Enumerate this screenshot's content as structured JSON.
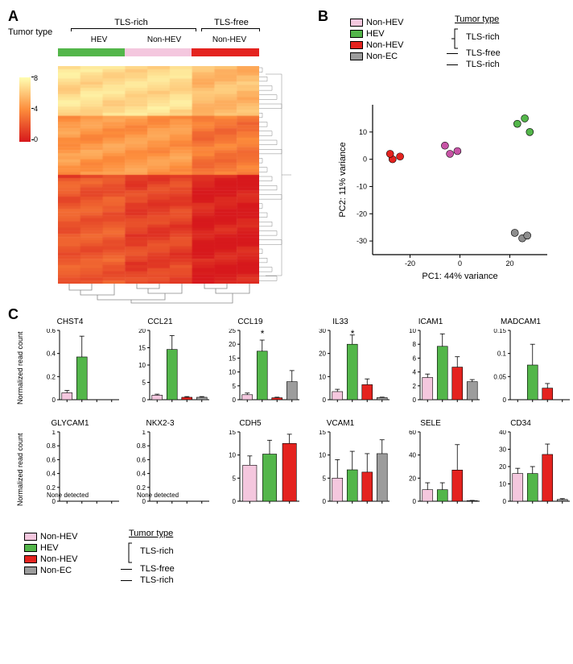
{
  "colors": {
    "nonHEV_rich": "#f4c7de",
    "HEV": "#53b64a",
    "nonHEV_free": "#e4231f",
    "nonEC": "#9c9c9c",
    "nonEC_pca": "#8e8e8e",
    "axis": "#000000",
    "heatmap_low": "#d7191c",
    "heatmap_mid": "#fd8d3c",
    "heatmap_high": "#ffffb2",
    "dendro": "#888888"
  },
  "panelA": {
    "label": "A",
    "tumor_type_label": "Tumor type",
    "group_labels": {
      "tls_rich": "TLS-rich",
      "tls_free": "TLS-free"
    },
    "sub_labels": {
      "hev": "HEV",
      "nonhev1": "Non-HEV",
      "nonhev2": "Non-HEV"
    },
    "colorbar_ticks": [
      0,
      4,
      8
    ],
    "heatmap_rows": 70,
    "heatmap_cols": 9
  },
  "panelB": {
    "label": "B",
    "legend": {
      "items": [
        {
          "label": "Non-HEV",
          "colorKey": "nonHEV_rich"
        },
        {
          "label": "HEV",
          "colorKey": "HEV"
        },
        {
          "label": "Non-HEV",
          "colorKey": "nonHEV_free"
        },
        {
          "label": "Non-EC",
          "colorKey": "nonEC"
        }
      ],
      "tumor_type_label": "Tumor type",
      "bracket_label": "TLS-rich",
      "line_labels": [
        "TLS-free",
        "TLS-rich"
      ]
    },
    "pca": {
      "xlabel": "PC1: 44% variance",
      "ylabel": "PC2: 11% variance",
      "xlim": [
        -35,
        35
      ],
      "ylim": [
        -35,
        20
      ],
      "xticks": [
        -20,
        0,
        20
      ],
      "yticks": [
        -30,
        -20,
        -10,
        0,
        10
      ],
      "points": [
        {
          "x": -27,
          "y": 0,
          "colorKey": "nonHEV_free"
        },
        {
          "x": -28,
          "y": 2,
          "colorKey": "nonHEV_free"
        },
        {
          "x": -24,
          "y": 1,
          "colorKey": "nonHEV_free"
        },
        {
          "x": -6,
          "y": 5,
          "colorKey": "nonHEV_rich_pca"
        },
        {
          "x": -4,
          "y": 2,
          "colorKey": "nonHEV_rich_pca"
        },
        {
          "x": -1,
          "y": 3,
          "colorKey": "nonHEV_rich_pca"
        },
        {
          "x": 23,
          "y": 13,
          "colorKey": "HEV"
        },
        {
          "x": 26,
          "y": 15,
          "colorKey": "HEV"
        },
        {
          "x": 28,
          "y": 10,
          "colorKey": "HEV"
        },
        {
          "x": 22,
          "y": -27,
          "colorKey": "nonEC_pca"
        },
        {
          "x": 25,
          "y": -29,
          "colorKey": "nonEC_pca"
        },
        {
          "x": 27,
          "y": -28,
          "colorKey": "nonEC_pca"
        }
      ],
      "pca_pink": "#c754a6"
    }
  },
  "panelC": {
    "label": "C",
    "ylabel": "Normalized read count",
    "charts": [
      {
        "gene": "CHST4",
        "ymax": 0.6,
        "yticks": [
          0,
          0.2,
          0.4,
          0.6
        ],
        "vals": [
          0.06,
          0.37,
          0,
          0
        ],
        "errs": [
          0.02,
          0.18,
          0,
          0
        ],
        "row": 0,
        "col": 0,
        "sig": ""
      },
      {
        "gene": "CCL21",
        "ymax": 20,
        "yticks": [
          0,
          5,
          10,
          15,
          20
        ],
        "vals": [
          1.3,
          14.5,
          0.7,
          0.7
        ],
        "errs": [
          0.3,
          4,
          0.2,
          0.2
        ],
        "row": 0,
        "col": 1,
        "sig": ""
      },
      {
        "gene": "CCL19",
        "ymax": 25,
        "yticks": [
          0,
          5,
          10,
          15,
          20,
          25
        ],
        "vals": [
          1.8,
          17.5,
          0.7,
          6.5
        ],
        "errs": [
          0.6,
          4,
          0.2,
          4
        ],
        "row": 0,
        "col": 2,
        "sig": "*"
      },
      {
        "gene": "IL33",
        "ymax": 30,
        "yticks": [
          0,
          10,
          20,
          30
        ],
        "vals": [
          3.5,
          24,
          6.5,
          0.9
        ],
        "errs": [
          1,
          4,
          2.5,
          0.2
        ],
        "row": 0,
        "col": 3,
        "sig": "*"
      },
      {
        "gene": "ICAM1",
        "ymax": 10,
        "yticks": [
          0,
          2,
          4,
          6,
          8,
          10
        ],
        "vals": [
          3.2,
          7.7,
          4.7,
          2.6
        ],
        "errs": [
          0.5,
          1.8,
          1.5,
          0.3
        ],
        "row": 0,
        "col": 4,
        "sig": ""
      },
      {
        "gene": "MADCAM1",
        "ymax": 0.15,
        "yticks": [
          0,
          0.05,
          0.1,
          0.15
        ],
        "vals": [
          0,
          0.075,
          0.025,
          0
        ],
        "errs": [
          0,
          0.045,
          0.01,
          0
        ],
        "row": 0,
        "col": 5,
        "sig": ""
      },
      {
        "gene": "GLYCAM1",
        "ymax": 1.0,
        "yticks": [
          0,
          0.2,
          0.4,
          0.6,
          0.8,
          1.0
        ],
        "vals": [
          0,
          0,
          0,
          0
        ],
        "errs": [
          0,
          0,
          0,
          0
        ],
        "row": 1,
        "col": 0,
        "sig": "",
        "none": true,
        "ncols": 4
      },
      {
        "gene": "NKX2-3",
        "ymax": 1.0,
        "yticks": [
          0,
          0.2,
          0.4,
          0.6,
          0.8,
          1.0
        ],
        "vals": [
          0,
          0,
          0,
          0
        ],
        "errs": [
          0,
          0,
          0,
          0
        ],
        "row": 1,
        "col": 1,
        "sig": "",
        "none": true,
        "ncols": 4
      },
      {
        "gene": "CDH5",
        "ymax": 15,
        "yticks": [
          0,
          5,
          10,
          15
        ],
        "vals": [
          7.8,
          10.2,
          12.5,
          0
        ],
        "errs": [
          2,
          3,
          2,
          0
        ],
        "row": 1,
        "col": 2,
        "sig": "",
        "ncols": 3
      },
      {
        "gene": "VCAM1",
        "ymax": 15,
        "yticks": [
          0,
          5,
          10,
          15
        ],
        "vals": [
          5,
          6.8,
          6.3,
          10.3
        ],
        "errs": [
          4,
          4,
          4,
          3
        ],
        "row": 1,
        "col": 3,
        "sig": ""
      },
      {
        "gene": "SELE",
        "ymax": 60,
        "yticks": [
          0,
          20,
          40,
          60
        ],
        "vals": [
          10,
          10,
          27,
          0.5
        ],
        "errs": [
          6,
          6,
          22,
          0.2
        ],
        "row": 1,
        "col": 4,
        "sig": ""
      },
      {
        "gene": "CD34",
        "ymax": 40,
        "yticks": [
          0,
          10,
          20,
          30,
          40
        ],
        "vals": [
          16,
          16,
          27,
          1
        ],
        "errs": [
          3,
          4,
          6,
          0.5
        ],
        "row": 1,
        "col": 5,
        "sig": ""
      }
    ],
    "bar_colors": [
      "nonHEV_rich",
      "HEV",
      "nonHEV_free",
      "nonEC"
    ],
    "none_detected_text": "None detected",
    "legend": {
      "items": [
        {
          "label": "Non-HEV",
          "colorKey": "nonHEV_rich"
        },
        {
          "label": "HEV",
          "colorKey": "HEV"
        },
        {
          "label": "Non-HEV",
          "colorKey": "nonHEV_free"
        },
        {
          "label": "Non-EC",
          "colorKey": "nonEC"
        }
      ],
      "tumor_type_label": "Tumor type",
      "bracket_label": "TLS-rich",
      "line_labels": [
        "TLS-free",
        "TLS-rich"
      ]
    }
  }
}
